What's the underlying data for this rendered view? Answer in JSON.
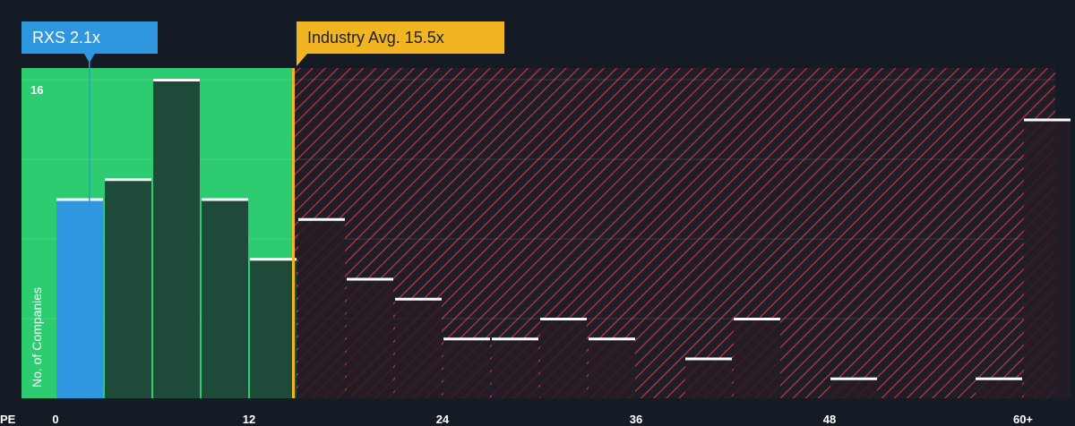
{
  "chart_data": {
    "type": "bar",
    "xlabel": "PE",
    "ylabel": "No. of Companies",
    "x_ticks": [
      "0",
      "12",
      "24",
      "36",
      "48",
      "60+"
    ],
    "x_tick_values": [
      0,
      12,
      24,
      36,
      48,
      60
    ],
    "y_ticks": [
      "16"
    ],
    "y_tick_values": [
      16
    ],
    "ylim": [
      0,
      16.5
    ],
    "xlim": [
      0,
      61.5
    ],
    "bin_width": 3,
    "bins": [
      {
        "x0": 0,
        "value": 10,
        "highlight": true
      },
      {
        "x0": 3,
        "value": 11
      },
      {
        "x0": 6,
        "value": 16
      },
      {
        "x0": 9,
        "value": 10
      },
      {
        "x0": 12,
        "value": 7
      },
      {
        "x0": 15,
        "value": 9
      },
      {
        "x0": 18,
        "value": 6
      },
      {
        "x0": 21,
        "value": 5
      },
      {
        "x0": 24,
        "value": 3
      },
      {
        "x0": 27,
        "value": 3
      },
      {
        "x0": 30,
        "value": 4
      },
      {
        "x0": 33,
        "value": 3
      },
      {
        "x0": 36,
        "value": 0
      },
      {
        "x0": 39,
        "value": 2
      },
      {
        "x0": 42,
        "value": 4
      },
      {
        "x0": 45,
        "value": 0
      },
      {
        "x0": 48,
        "value": 1
      },
      {
        "x0": 51,
        "value": 0
      },
      {
        "x0": 54,
        "value": 0
      },
      {
        "x0": 57,
        "value": 1
      },
      {
        "x0": 60,
        "value": 14
      }
    ],
    "company": {
      "label": "RXS 2.1x",
      "value": 2.1
    },
    "industry": {
      "label": "Industry Avg. 15.5x",
      "value": 15.5
    },
    "grid": true,
    "colors": {
      "background": "#151b24",
      "undervalued": "#2ecc71",
      "company_bar": "#2f96e0",
      "undervalued_bar": "#1e4a3a",
      "overvalued_hatch": "#c8323e",
      "overvalued_bar": "#261b25",
      "industry": "#f0b520",
      "company_callout": "#2f96e0"
    }
  }
}
